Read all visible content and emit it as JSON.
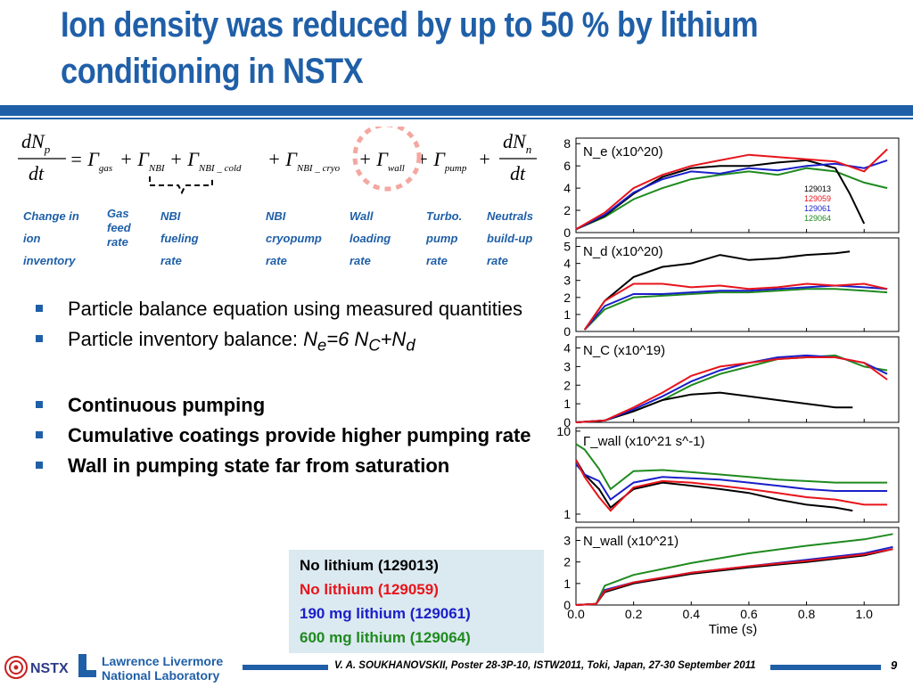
{
  "title": {
    "line1": "Ion density was reduced by up to 50 % by lithium",
    "line2": "conditioning in NSTX"
  },
  "equation": {
    "lhs_num": "dN",
    "lhs_num_sub": "p",
    "lhs_den": "dt",
    "terms": [
      {
        "op": "= Γ",
        "sub": "gas"
      },
      {
        "op": "+ Γ",
        "sub": "NBI"
      },
      {
        "op": "+ Γ",
        "sub": "NBI _ cold"
      },
      {
        "op": "+ Γ",
        "sub": "NBI _ cryo"
      },
      {
        "op": "+ Γ",
        "sub": "wall"
      },
      {
        "op": "+ Γ",
        "sub": "pump"
      },
      {
        "op": "+",
        "sub": ""
      }
    ],
    "rhs_num": "dN",
    "rhs_num_sub": "n",
    "rhs_den": "dt"
  },
  "term_labels": [
    {
      "lines": [
        "Change in",
        "ion",
        "inventory"
      ]
    },
    {
      "lines": [
        "Gas",
        "feed",
        "rate"
      ]
    },
    {
      "lines": [
        "NBI",
        "fueling",
        "rate"
      ]
    },
    {
      "lines": [
        "NBI",
        "cryopump",
        "rate"
      ]
    },
    {
      "lines": [
        "Wall",
        "loading",
        "rate"
      ]
    },
    {
      "lines": [
        "Turbo.",
        "pump",
        "rate"
      ]
    },
    {
      "lines": [
        "Neutrals",
        "build-up",
        "rate"
      ]
    }
  ],
  "bullets": {
    "b1": "Particle balance equation using measured quantities",
    "b2_prefix": "Particle inventory balance: ",
    "b2_formula": {
      "N": "N",
      "e": "e",
      "mid": "=6 N",
      "C": "C",
      "plus": "+N",
      "d": "d"
    },
    "b3": "Continuous pumping",
    "b4": "Cumulative coatings provide higher pumping rate",
    "b5": "Wall in pumping state far from saturation"
  },
  "legend_box": [
    {
      "text": "No lithium (129013)",
      "color": "#000000"
    },
    {
      "text": "No lithium (129059)",
      "color": "#e8141b"
    },
    {
      "text": "190 mg lithium (129061)",
      "color": "#1a1fc8"
    },
    {
      "text": "600 mg lithium (129064)",
      "color": "#1f8a1f"
    }
  ],
  "chart_data": {
    "type": "line",
    "xlabel": "Time (s)",
    "x_ticks": [
      "0.0",
      "0.2",
      "0.4",
      "0.6",
      "0.8",
      "1.0"
    ],
    "xlim": [
      0,
      1.12
    ],
    "series_names": [
      "129013",
      "129059",
      "129061",
      "129064"
    ],
    "series_colors": [
      "#000000",
      "#e8141b",
      "#1a1fc8",
      "#1f8a1f"
    ],
    "panels": [
      {
        "label": "N_e (x10^20)",
        "yticks": [
          "0",
          "2",
          "4",
          "6",
          "8"
        ],
        "ylim": [
          0,
          8.5
        ],
        "series": [
          {
            "name": "129013",
            "x": [
              0.0,
              0.1,
              0.2,
              0.3,
              0.4,
              0.5,
              0.6,
              0.7,
              0.8,
              0.9,
              0.95,
              1.0
            ],
            "values": [
              0.3,
              1.5,
              3.5,
              5.0,
              5.8,
              6.0,
              6.0,
              6.3,
              6.5,
              5.8,
              3.5,
              0.8
            ]
          },
          {
            "name": "129059",
            "x": [
              0.0,
              0.1,
              0.2,
              0.3,
              0.4,
              0.5,
              0.6,
              0.7,
              0.8,
              0.9,
              1.0,
              1.08
            ],
            "values": [
              0.3,
              1.8,
              4.0,
              5.2,
              6.0,
              6.5,
              7.0,
              6.8,
              6.6,
              6.4,
              5.5,
              7.5
            ]
          },
          {
            "name": "129061",
            "x": [
              0.0,
              0.1,
              0.2,
              0.3,
              0.4,
              0.5,
              0.6,
              0.7,
              0.8,
              0.9,
              1.0,
              1.08
            ],
            "values": [
              0.3,
              1.6,
              3.6,
              4.8,
              5.5,
              5.3,
              5.8,
              5.6,
              6.0,
              6.2,
              5.8,
              6.5
            ]
          },
          {
            "name": "129064",
            "x": [
              0.0,
              0.1,
              0.2,
              0.3,
              0.4,
              0.5,
              0.6,
              0.7,
              0.8,
              0.9,
              1.0,
              1.08
            ],
            "values": [
              0.3,
              1.4,
              3.0,
              4.0,
              4.8,
              5.2,
              5.5,
              5.2,
              5.8,
              5.5,
              4.5,
              4.0
            ]
          }
        ]
      },
      {
        "label": "N_d (x10^20)",
        "yticks": [
          "0",
          "1",
          "2",
          "3",
          "4",
          "5"
        ],
        "ylim": [
          0,
          5.5
        ],
        "series": [
          {
            "name": "129013",
            "x": [
              0.03,
              0.1,
              0.2,
              0.3,
              0.4,
              0.5,
              0.6,
              0.7,
              0.8,
              0.9,
              0.95
            ],
            "values": [
              0.1,
              1.8,
              3.2,
              3.8,
              4.0,
              4.5,
              4.2,
              4.3,
              4.5,
              4.6,
              4.7
            ]
          },
          {
            "name": "129059",
            "x": [
              0.03,
              0.1,
              0.2,
              0.3,
              0.4,
              0.5,
              0.6,
              0.7,
              0.8,
              0.9,
              1.0,
              1.08
            ],
            "values": [
              0.1,
              1.8,
              2.8,
              2.8,
              2.6,
              2.7,
              2.5,
              2.6,
              2.8,
              2.7,
              2.8,
              2.5
            ]
          },
          {
            "name": "129061",
            "x": [
              0.03,
              0.1,
              0.2,
              0.3,
              0.4,
              0.5,
              0.6,
              0.7,
              0.8,
              0.9,
              1.0,
              1.08
            ],
            "values": [
              0.1,
              1.5,
              2.2,
              2.2,
              2.3,
              2.4,
              2.4,
              2.5,
              2.6,
              2.7,
              2.6,
              2.5
            ]
          },
          {
            "name": "129064",
            "x": [
              0.03,
              0.1,
              0.2,
              0.3,
              0.4,
              0.5,
              0.6,
              0.7,
              0.8,
              0.9,
              1.0,
              1.08
            ],
            "values": [
              0.1,
              1.3,
              2.0,
              2.1,
              2.2,
              2.3,
              2.3,
              2.4,
              2.5,
              2.5,
              2.4,
              2.3
            ]
          }
        ]
      },
      {
        "label": "N_C (x10^19)",
        "yticks": [
          "0",
          "1",
          "2",
          "3",
          "4"
        ],
        "ylim": [
          0,
          4.6
        ],
        "series": [
          {
            "name": "129013",
            "x": [
              0.0,
              0.1,
              0.2,
              0.3,
              0.4,
              0.5,
              0.6,
              0.7,
              0.8,
              0.9,
              0.96
            ],
            "values": [
              0.0,
              0.1,
              0.6,
              1.2,
              1.5,
              1.6,
              1.4,
              1.2,
              1.0,
              0.8,
              0.8
            ]
          },
          {
            "name": "129059",
            "x": [
              0.0,
              0.1,
              0.2,
              0.3,
              0.4,
              0.5,
              0.6,
              0.7,
              0.8,
              0.9,
              1.0,
              1.08
            ],
            "values": [
              0.0,
              0.1,
              0.8,
              1.6,
              2.5,
              3.0,
              3.2,
              3.4,
              3.5,
              3.5,
              3.2,
              2.3
            ]
          },
          {
            "name": "129061",
            "x": [
              0.0,
              0.1,
              0.2,
              0.3,
              0.4,
              0.5,
              0.6,
              0.7,
              0.8,
              0.9,
              1.0,
              1.08
            ],
            "values": [
              0.0,
              0.1,
              0.7,
              1.4,
              2.2,
              2.8,
              3.2,
              3.5,
              3.6,
              3.5,
              3.2,
              2.6
            ]
          },
          {
            "name": "129064",
            "x": [
              0.0,
              0.1,
              0.2,
              0.3,
              0.4,
              0.5,
              0.6,
              0.7,
              0.8,
              0.9,
              1.0,
              1.08
            ],
            "values": [
              0.0,
              0.1,
              0.6,
              1.2,
              2.0,
              2.6,
              3.0,
              3.4,
              3.5,
              3.6,
              3.0,
              2.8
            ]
          }
        ]
      },
      {
        "label": "Γ_wall (x10^21 s^-1)",
        "yticks": [
          "1",
          "10"
        ],
        "ylim": [
          0.8,
          11
        ],
        "log": true,
        "series": [
          {
            "name": "129013",
            "x": [
              0.0,
              0.03,
              0.08,
              0.12,
              0.2,
              0.3,
              0.4,
              0.5,
              0.6,
              0.7,
              0.8,
              0.9,
              0.96
            ],
            "values": [
              4.5,
              3.0,
              2.0,
              1.2,
              2.0,
              2.4,
              2.2,
              2.0,
              1.8,
              1.5,
              1.3,
              1.2,
              1.1
            ]
          },
          {
            "name": "129059",
            "x": [
              0.0,
              0.03,
              0.08,
              0.12,
              0.2,
              0.3,
              0.4,
              0.5,
              0.6,
              0.7,
              0.8,
              0.9,
              1.0,
              1.08
            ],
            "values": [
              4.5,
              2.8,
              1.6,
              1.1,
              2.1,
              2.5,
              2.4,
              2.2,
              2.0,
              1.8,
              1.6,
              1.5,
              1.3,
              1.3
            ]
          },
          {
            "name": "129061",
            "x": [
              0.0,
              0.03,
              0.08,
              0.12,
              0.2,
              0.3,
              0.4,
              0.5,
              0.6,
              0.7,
              0.8,
              0.9,
              1.0,
              1.08
            ],
            "values": [
              4.0,
              3.0,
              2.5,
              1.5,
              2.4,
              2.8,
              2.7,
              2.6,
              2.4,
              2.2,
              2.0,
              1.9,
              1.9,
              1.9
            ]
          },
          {
            "name": "129064",
            "x": [
              0.0,
              0.03,
              0.08,
              0.12,
              0.2,
              0.3,
              0.4,
              0.5,
              0.6,
              0.7,
              0.8,
              0.9,
              1.0,
              1.08
            ],
            "values": [
              7.0,
              6.0,
              3.5,
              2.0,
              3.3,
              3.4,
              3.2,
              3.0,
              2.8,
              2.6,
              2.5,
              2.4,
              2.4,
              2.4
            ]
          }
        ]
      },
      {
        "label": "N_wall (x10^21)",
        "yticks": [
          "0",
          "1",
          "2",
          "3"
        ],
        "ylim": [
          0,
          3.6
        ],
        "series": [
          {
            "name": "129013",
            "x": [
              0.0,
              0.07,
              0.1,
              0.2,
              0.4,
              0.6,
              0.8,
              1.0,
              1.1
            ],
            "values": [
              0.0,
              0.05,
              0.6,
              1.0,
              1.45,
              1.75,
              2.0,
              2.3,
              2.6
            ]
          },
          {
            "name": "129059",
            "x": [
              0.0,
              0.07,
              0.1,
              0.2,
              0.4,
              0.6,
              0.8,
              1.0,
              1.1
            ],
            "values": [
              0.0,
              0.05,
              0.65,
              1.05,
              1.5,
              1.8,
              2.05,
              2.35,
              2.6
            ]
          },
          {
            "name": "129061",
            "x": [
              0.0,
              0.07,
              0.1,
              0.2,
              0.4,
              0.6,
              0.8,
              1.0,
              1.1
            ],
            "values": [
              0.0,
              0.05,
              0.7,
              1.05,
              1.5,
              1.8,
              2.1,
              2.4,
              2.7
            ]
          },
          {
            "name": "129064",
            "x": [
              0.0,
              0.07,
              0.1,
              0.2,
              0.4,
              0.6,
              0.8,
              1.0,
              1.1
            ],
            "values": [
              0.0,
              0.05,
              0.9,
              1.4,
              1.95,
              2.4,
              2.75,
              3.05,
              3.3
            ]
          }
        ]
      }
    ]
  },
  "footer": {
    "citation": "V. A. SOUKHANOVSKII, Poster 28-3P-10, ISTW2011, Toki, Japan, 27-30 September 2011",
    "page_number": "9",
    "nstx_logo": "NSTX",
    "llnl_line1": "Lawrence Livermore",
    "llnl_line2": "National Laboratory"
  },
  "colors": {
    "accent": "#1f5fa8",
    "highlight_circle": "#f4a7a0"
  }
}
